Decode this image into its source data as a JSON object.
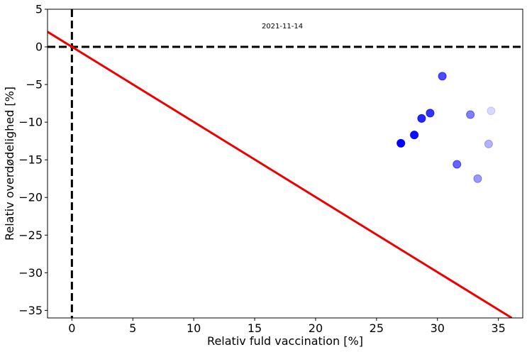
{
  "chart_data": {
    "type": "scatter",
    "annotation": "2021-11-14",
    "xlabel": "Relativ fuld vaccination [%]",
    "ylabel": "Relativ overdødelighed [%]",
    "xlim": [
      -2,
      37
    ],
    "ylim": [
      -36,
      5
    ],
    "xticks": [
      0,
      5,
      10,
      15,
      20,
      25,
      30,
      35
    ],
    "yticks": [
      5,
      0,
      -5,
      -10,
      -15,
      -20,
      -25,
      -30,
      -35
    ],
    "xtick_labels": [
      "0",
      "5",
      "10",
      "15",
      "20",
      "25",
      "30",
      "35"
    ],
    "ytick_labels": [
      "5",
      "0",
      "−5",
      "−10",
      "−15",
      "−20",
      "−25",
      "−30",
      "−35"
    ],
    "grid": false,
    "reference_lines": {
      "x": 0,
      "y": 0,
      "style": "dashed",
      "color": "#000000"
    },
    "fit_line": {
      "color": "#ee0000",
      "x": [
        -2,
        36.1
      ],
      "y": [
        2.0,
        -36.0
      ]
    },
    "point_color": "#0000ff",
    "points": [
      {
        "x": 27.0,
        "y": -12.8,
        "opacity": 1.0
      },
      {
        "x": 28.1,
        "y": -11.7,
        "opacity": 0.95
      },
      {
        "x": 28.7,
        "y": -9.5,
        "opacity": 0.85
      },
      {
        "x": 29.4,
        "y": -8.8,
        "opacity": 0.8
      },
      {
        "x": 30.4,
        "y": -3.9,
        "opacity": 0.7
      },
      {
        "x": 31.6,
        "y": -15.6,
        "opacity": 0.6
      },
      {
        "x": 32.7,
        "y": -9.0,
        "opacity": 0.5
      },
      {
        "x": 33.3,
        "y": -17.5,
        "opacity": 0.4
      },
      {
        "x": 34.2,
        "y": -12.9,
        "opacity": 0.3
      },
      {
        "x": 34.4,
        "y": -8.5,
        "opacity": 0.15
      }
    ]
  }
}
